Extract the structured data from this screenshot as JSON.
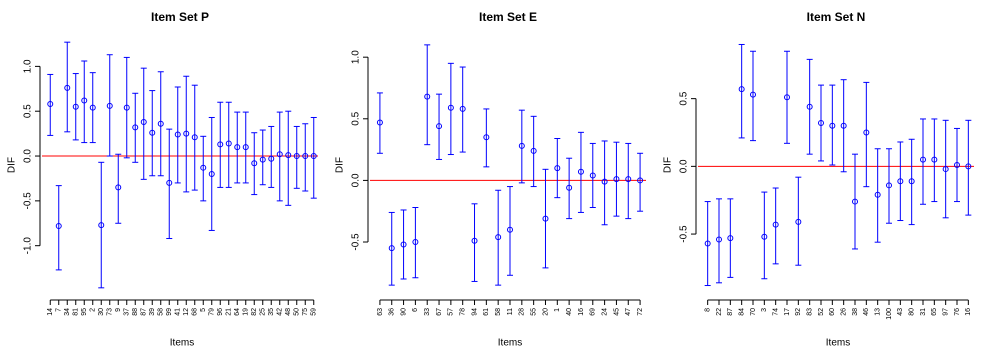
{
  "chart_data": [
    {
      "type": "errorbar",
      "title": "Item Set P",
      "xlabel": "Items",
      "ylabel": "DIF",
      "color": "#0000ff",
      "hline": 0,
      "hline_color": "#ff0000",
      "categories": [
        "14",
        "7",
        "34",
        "81",
        "95",
        "2",
        "30",
        "73",
        "9",
        "37",
        "88",
        "87",
        "39",
        "58",
        "99",
        "41",
        "12",
        "68",
        "5",
        "79",
        "96",
        "21",
        "64",
        "19",
        "82",
        "25",
        "35",
        "42",
        "48",
        "50",
        "75",
        "59"
      ],
      "values": [
        0.58,
        -0.78,
        0.76,
        0.55,
        0.62,
        0.54,
        -0.77,
        0.56,
        -0.35,
        0.54,
        0.32,
        0.38,
        0.26,
        0.36,
        -0.3,
        0.24,
        0.25,
        0.21,
        -0.13,
        -0.2,
        0.13,
        0.14,
        0.1,
        0.1,
        -0.08,
        -0.04,
        -0.03,
        0.02,
        0.01,
        0.0,
        0.0,
        0.0
      ],
      "lower": [
        0.23,
        -1.27,
        0.27,
        0.18,
        0.15,
        0.15,
        -1.47,
        0.0,
        -0.75,
        -0.02,
        -0.07,
        -0.26,
        -0.22,
        -0.22,
        -0.92,
        -0.3,
        -0.4,
        -0.38,
        -0.5,
        -0.83,
        -0.35,
        -0.35,
        -0.3,
        -0.3,
        -0.43,
        -0.32,
        -0.35,
        -0.5,
        -0.55,
        -0.36,
        -0.39,
        -0.47
      ],
      "upper": [
        0.91,
        -0.33,
        1.27,
        0.92,
        1.06,
        0.93,
        -0.07,
        1.13,
        0.02,
        1.1,
        0.7,
        0.98,
        0.73,
        0.94,
        0.3,
        0.77,
        0.89,
        0.79,
        0.22,
        0.43,
        0.6,
        0.6,
        0.49,
        0.49,
        0.26,
        0.29,
        0.33,
        0.49,
        0.5,
        0.33,
        0.36,
        0.43
      ],
      "ylim": [
        -1.55,
        1.35
      ],
      "yticks": [
        {
          "value": -1,
          "label": "-1.0"
        },
        -0.5,
        {
          "value": 0,
          "label": "0.0"
        },
        0.5,
        {
          "value": 1,
          "label": "1.0"
        }
      ]
    },
    {
      "type": "errorbar",
      "title": "Item Set E",
      "xlabel": "Items",
      "ylabel": "DIF",
      "color": "#0000ff",
      "hline": 0,
      "hline_color": "#ff0000",
      "categories": [
        "63",
        "36",
        "90",
        "6",
        "33",
        "67",
        "57",
        "78",
        "94",
        "61",
        "58",
        "11",
        "28",
        "55",
        "20",
        "1",
        "40",
        "16",
        "69",
        "24",
        "45",
        "47",
        "72"
      ],
      "values": [
        0.47,
        -0.55,
        -0.52,
        -0.5,
        0.68,
        0.44,
        0.59,
        0.58,
        -0.49,
        0.35,
        -0.46,
        -0.4,
        0.28,
        0.24,
        -0.31,
        0.1,
        -0.06,
        0.07,
        0.04,
        -0.01,
        0.01,
        0.01,
        0.0
      ],
      "lower": [
        0.22,
        -0.85,
        -0.8,
        -0.79,
        0.29,
        0.17,
        0.21,
        0.23,
        -0.82,
        0.11,
        -0.85,
        -0.77,
        -0.02,
        -0.05,
        -0.71,
        -0.14,
        -0.31,
        -0.26,
        -0.22,
        -0.36,
        -0.29,
        -0.31,
        -0.25
      ],
      "upper": [
        0.71,
        -0.26,
        -0.24,
        -0.22,
        1.1,
        0.7,
        0.95,
        0.92,
        -0.19,
        0.58,
        -0.08,
        -0.05,
        0.57,
        0.52,
        0.09,
        0.34,
        0.18,
        0.39,
        0.3,
        0.32,
        0.31,
        0.3,
        0.22
      ],
      "ylim": [
        -0.93,
        1.18
      ],
      "yticks": [
        -0.5,
        {
          "value": 0,
          "label": "0.0"
        },
        0.5,
        {
          "value": 1,
          "label": "1.0"
        }
      ]
    },
    {
      "type": "errorbar",
      "title": "Item Set N",
      "xlabel": "Items",
      "ylabel": "DIF",
      "color": "#0000ff",
      "hline": 0,
      "hline_color": "#ff0000",
      "categories": [
        "8",
        "22",
        "87",
        "84",
        "70",
        "3",
        "74",
        "17",
        "92",
        "83",
        "52",
        "60",
        "26",
        "38",
        "46",
        "13",
        "100",
        "43",
        "80",
        "31",
        "65",
        "97",
        "76",
        "16"
      ],
      "values": [
        -0.57,
        -0.54,
        -0.53,
        0.57,
        0.53,
        -0.52,
        -0.43,
        0.51,
        -0.41,
        0.44,
        0.32,
        0.3,
        0.3,
        -0.26,
        0.25,
        -0.21,
        -0.14,
        -0.11,
        -0.11,
        0.05,
        0.05,
        -0.02,
        0.01,
        0.0
      ],
      "lower": [
        -0.88,
        -0.86,
        -0.82,
        0.21,
        0.19,
        -0.83,
        -0.72,
        0.17,
        -0.73,
        0.09,
        0.04,
        0.01,
        -0.04,
        -0.61,
        -0.15,
        -0.56,
        -0.42,
        -0.4,
        -0.43,
        -0.28,
        -0.26,
        -0.38,
        -0.26,
        -0.36
      ],
      "upper": [
        -0.26,
        -0.24,
        -0.24,
        0.9,
        0.85,
        -0.19,
        -0.16,
        0.85,
        -0.08,
        0.79,
        0.6,
        0.6,
        0.64,
        0.09,
        0.62,
        0.13,
        0.13,
        0.18,
        0.2,
        0.35,
        0.35,
        0.34,
        0.28,
        0.34
      ],
      "ylim": [
        -0.95,
        0.97
      ],
      "yticks": [
        -0.5,
        {
          "value": 0,
          "label": "0.0"
        },
        0.5
      ]
    }
  ]
}
